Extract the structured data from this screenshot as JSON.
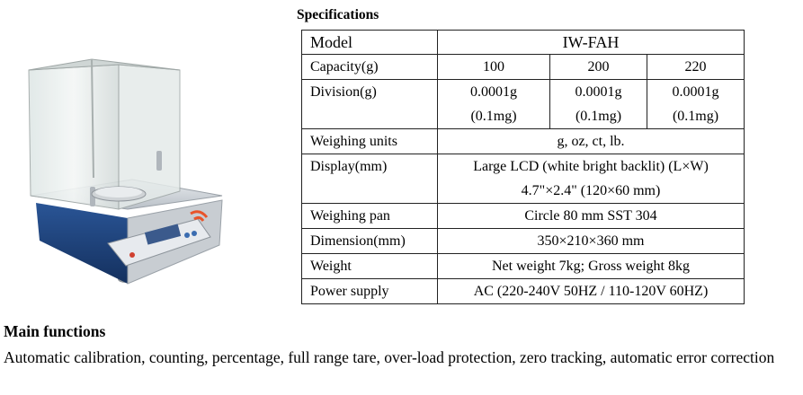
{
  "specifications": {
    "title": "Specifications",
    "model": {
      "label": "Model",
      "value": "IW-FAH"
    },
    "capacity": {
      "label": "Capacity(g)",
      "values": [
        "100",
        "200",
        "220"
      ]
    },
    "division": {
      "label": "Division(g)",
      "values": [
        {
          "line1": "0.0001g",
          "line2": "(0.1mg)"
        },
        {
          "line1": "0.0001g",
          "line2": "(0.1mg)"
        },
        {
          "line1": "0.0001g",
          "line2": "(0.1mg)"
        }
      ]
    },
    "weighing_units": {
      "label": "Weighing units",
      "value": "g, oz, ct, lb."
    },
    "display": {
      "label": "Display(mm)",
      "line1": "Large LCD (white bright backlit) (L×W)",
      "line2": "4.7\"×2.4\" (120×60 mm)"
    },
    "weighing_pan": {
      "label": "Weighing pan",
      "value": "Circle 80 mm SST 304"
    },
    "dimension": {
      "label": "Dimension(mm)",
      "value": "350×210×360 mm"
    },
    "weight": {
      "label": "Weight",
      "value": "Net weight 7kg; Gross weight 8kg"
    },
    "power_supply": {
      "label": "Power supply",
      "value": "AC (220-240V 50HZ / 110-120V 60HZ)"
    }
  },
  "main_functions": {
    "title": "Main functions",
    "text": "Automatic calibration, counting, percentage, full range tare, over-load protection, zero tracking, automatic error correction"
  },
  "product_image": {
    "icon": "analytical-balance-icon",
    "accent": "#e8542a",
    "panel_color": "#1b3f7a"
  }
}
